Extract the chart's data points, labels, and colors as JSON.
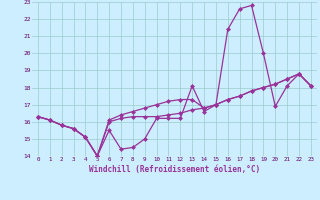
{
  "xlabel": "Windchill (Refroidissement éolien,°C)",
  "x_values": [
    0,
    1,
    2,
    3,
    4,
    5,
    6,
    7,
    8,
    9,
    10,
    11,
    12,
    13,
    14,
    15,
    16,
    17,
    18,
    19,
    20,
    21,
    22,
    23
  ],
  "line1": [
    16.3,
    16.1,
    15.8,
    15.6,
    15.1,
    14.0,
    15.5,
    14.4,
    14.5,
    15.0,
    16.2,
    16.2,
    16.2,
    18.1,
    16.6,
    17.0,
    21.4,
    22.6,
    22.8,
    20.0,
    16.9,
    18.1,
    18.8,
    18.1
  ],
  "line2": [
    16.3,
    16.1,
    15.8,
    15.6,
    15.1,
    14.0,
    16.0,
    16.2,
    16.3,
    16.3,
    16.3,
    16.4,
    16.5,
    16.7,
    16.8,
    17.0,
    17.3,
    17.5,
    17.8,
    18.0,
    18.2,
    18.5,
    18.8,
    18.1
  ],
  "line3": [
    16.3,
    16.1,
    15.8,
    15.6,
    15.1,
    14.0,
    16.1,
    16.4,
    16.6,
    16.8,
    17.0,
    17.2,
    17.3,
    17.3,
    16.8,
    17.0,
    17.3,
    17.5,
    17.8,
    18.0,
    18.2,
    18.5,
    18.8,
    18.1
  ],
  "ylim": [
    14,
    23
  ],
  "yticks": [
    14,
    15,
    16,
    17,
    18,
    19,
    20,
    21,
    22,
    23
  ],
  "line_color": "#993399",
  "bg_color": "#cceeff",
  "grid_color": "#99cccc",
  "marker": "D",
  "marker_size": 2.5,
  "linewidth": 0.9
}
